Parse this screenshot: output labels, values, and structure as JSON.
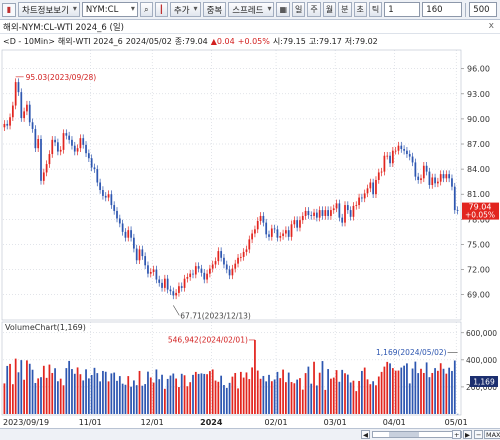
{
  "toolbar": {
    "menu_label": "차트정보보기",
    "symbol_value": "NYM:CL",
    "chart_type_label": "추가",
    "overlay_label": "중복",
    "spread_label": "스프레드",
    "periods": [
      "일",
      "주",
      "월",
      "분",
      "초",
      "틱"
    ],
    "interval_value": "1",
    "count_value": "160",
    "total_value": "500"
  },
  "subbar": {
    "title": "해외-NYM:CL-WTI 2024_6 (일)",
    "close_label": "x"
  },
  "infobar": {
    "prefix": "<D - 10Min>",
    "name": "해외-WTI 2024_6",
    "date": "2024/05/02",
    "close_label": "종:79.04",
    "change": "▲0.04",
    "change_pct": "+0.05%",
    "open_label": "시:79.15",
    "high_label": "고:79.17",
    "low_label": "저:79.02"
  },
  "volume_label": "VolumeChart(1,169)",
  "colors": {
    "up": "#e2251f",
    "down": "#2d56b0",
    "price_tag_bg": "#e2251f",
    "volume_tag_bg": "#1c2f6f",
    "annotation": "#444444",
    "annotation_red": "#d21f1f"
  },
  "bottom_buttons": [
    "◀",
    "▶",
    "+",
    "−",
    "MAX"
  ],
  "chart_data": {
    "type": "candlestick",
    "x_tick_labels": [
      "2023/09/19",
      "11/01",
      "12/01",
      "2024",
      "02/01",
      "03/01",
      "04/01",
      "05/01"
    ],
    "x_tick_dates": [
      "2023-09-19",
      "2023-11-01",
      "2023-12-01",
      "2024-01-01",
      "2024-02-01",
      "2024-03-01",
      "2024-04-01",
      "2024-05-01"
    ],
    "price_axis": {
      "ylim": [
        66.2,
        98.0
      ],
      "ticks": [
        69.0,
        72.0,
        75.0,
        78.0,
        81.0,
        84.0,
        87.0,
        90.0,
        93.0,
        96.0
      ]
    },
    "volume_axis": {
      "ylim": [
        0,
        650000
      ],
      "ticks": [
        200000,
        400000,
        600000
      ],
      "tick_labels": [
        "200,000",
        "400,000",
        "600,000"
      ]
    },
    "close_series": [
      89.4,
      89.2,
      90.2,
      91.6,
      94.4,
      93.2,
      90.1,
      90.9,
      91.7,
      89.6,
      88.8,
      86.5,
      87.6,
      82.6,
      83.6,
      84.6,
      85.8,
      87.5,
      87.2,
      86.1,
      86.3,
      88.3,
      88.0,
      87.5,
      86.8,
      86.1,
      86.5,
      87.7,
      86.9,
      85.9,
      85.3,
      84.2,
      84.0,
      82.4,
      81.5,
      80.8,
      80.6,
      81.0,
      79.7,
      79.0,
      78.1,
      77.5,
      76.5,
      75.8,
      76.7,
      75.8,
      74.5,
      73.1,
      74.4,
      73.6,
      72.5,
      71.5,
      71.7,
      72.0,
      70.8,
      70.4,
      69.8,
      70.9,
      69.6,
      69.4,
      68.9,
      69.2,
      70.0,
      69.8,
      70.9,
      71.1,
      71.5,
      71.4,
      72.4,
      72.1,
      71.6,
      70.8,
      71.5,
      72.1,
      72.6,
      73.0,
      74.2,
      73.4,
      72.6,
      72.0,
      71.3,
      72.1,
      72.7,
      73.4,
      73.5,
      74.1,
      74.4,
      75.6,
      76.3,
      76.8,
      77.8,
      78.4,
      77.6,
      76.2,
      75.9,
      76.9,
      76.8,
      75.8,
      76.0,
      76.3,
      76.7,
      75.9,
      77.4,
      77.9,
      77.0,
      77.9,
      78.4,
      79.0,
      78.5,
      78.4,
      78.8,
      78.2,
      79.1,
      78.4,
      79.1,
      78.4,
      79.1,
      79.3,
      79.9,
      78.2,
      77.6,
      79.7,
      79.1,
      78.3,
      79.6,
      79.7,
      80.6,
      80.5,
      81.1,
      81.7,
      82.4,
      81.0,
      82.7,
      83.6,
      83.7,
      85.6,
      85.6,
      84.7,
      86.2,
      86.2,
      86.8,
      86.4,
      86.2,
      85.8,
      85.5,
      84.8,
      83.1,
      82.7,
      82.9,
      84.4,
      83.7,
      82.1,
      83.0,
      82.3,
      82.5,
      83.4,
      82.9,
      83.4,
      82.9,
      81.9,
      79.1,
      79.04
    ],
    "volume_series": [
      226000,
      355000,
      370000,
      220000,
      409000,
      308000,
      398000,
      253000,
      396000,
      371000,
      327000,
      229000,
      263000,
      272000,
      356000,
      267000,
      365000,
      303000,
      338000,
      242000,
      261000,
      212000,
      339000,
      392000,
      332000,
      297000,
      344000,
      294000,
      248000,
      330000,
      263000,
      288000,
      341000,
      302000,
      241000,
      318000,
      312000,
      241000,
      300000,
      306000,
      245000,
      280000,
      224000,
      216000,
      280000,
      202000,
      248000,
      213000,
      318000,
      209000,
      221000,
      313000,
      270000,
      232000,
      329000,
      257000,
      290000,
      186000,
      259000,
      284000,
      299000,
      262000,
      199000,
      297000,
      286000,
      205000,
      235000,
      289000,
      311000,
      296000,
      300000,
      296000,
      294000,
      317000,
      329000,
      247000,
      238000,
      283000,
      214000,
      193000,
      230000,
      276000,
      303000,
      189000,
      311000,
      269000,
      307000,
      258000,
      344000,
      546942,
      321000,
      260000,
      281000,
      241000,
      289000,
      242000,
      255000,
      311000,
      265000,
      328000,
      235000,
      306000,
      236000,
      227000,
      254000,
      265000,
      180000,
      302000,
      350000,
      224000,
      386000,
      211000,
      305000,
      391000,
      178000,
      332000,
      261000,
      269000,
      324000,
      238000,
      326000,
      301000,
      291000,
      233000,
      246000,
      169000,
      244000,
      318000,
      343000,
      256000,
      220000,
      242000,
      212000,
      277000,
      311000,
      350000,
      385000,
      374000,
      339000,
      320000,
      321000,
      343000,
      357000,
      374000,
      226000,
      336000,
      387000,
      302000,
      334000,
      303000,
      381000,
      272000,
      303000,
      339000,
      319000,
      375000,
      334000,
      298000,
      342000,
      318000,
      395000,
      1169
    ],
    "annotations": [
      {
        "label": "95.03(2023/09/28)",
        "kind": "price_high",
        "value": 95.03
      },
      {
        "label": "67.71(2023/12/13)",
        "kind": "price_low",
        "value": 67.71
      },
      {
        "label": "546,942(2024/02/01)",
        "kind": "volume_high",
        "value": 546942
      },
      {
        "label": "1,169(2024/05/02)",
        "kind": "volume_last",
        "value": 1169
      }
    ],
    "price_tag": {
      "value": "79.04",
      "change": "+0.05%"
    },
    "volume_tag": "1,169"
  }
}
